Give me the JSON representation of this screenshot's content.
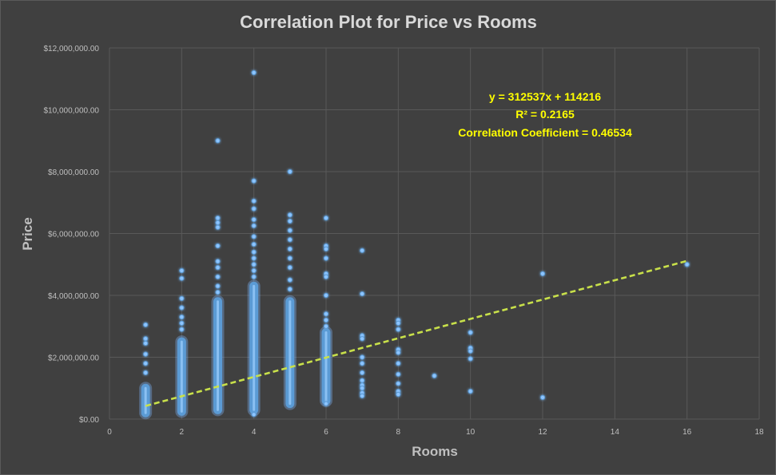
{
  "chart_data": {
    "type": "scatter",
    "title": "Correlation Plot for Price vs Rooms",
    "xlabel": "Rooms",
    "ylabel": "Price",
    "xlim": [
      0,
      18
    ],
    "ylim": [
      0,
      12000000
    ],
    "x_ticks": [
      0,
      2,
      4,
      6,
      8,
      10,
      12,
      14,
      16,
      18
    ],
    "y_ticks": [
      0,
      2000000,
      4000000,
      6000000,
      8000000,
      10000000,
      12000000
    ],
    "y_tick_labels": [
      "$0.00",
      "$2,000,000.00",
      "$4,000,000.00",
      "$6,000,000.00",
      "$8,000,000.00",
      "$10,000,000.00",
      "$12,000,000.00"
    ],
    "grid": true,
    "legend": "none",
    "series": [
      {
        "color": "#5b9bd5",
        "ranges": [
          {
            "x": 1,
            "y_min": 200000,
            "y_max": 1000000
          },
          {
            "x": 2,
            "y_min": 250000,
            "y_max": 2500000
          },
          {
            "x": 3,
            "y_min": 300000,
            "y_max": 3800000
          },
          {
            "x": 4,
            "y_min": 300000,
            "y_max": 4300000
          },
          {
            "x": 5,
            "y_min": 500000,
            "y_max": 3800000
          },
          {
            "x": 6,
            "y_min": 600000,
            "y_max": 2800000
          }
        ],
        "points": [
          {
            "x": 1,
            "y": 3050000
          },
          {
            "x": 1,
            "y": 2600000
          },
          {
            "x": 1,
            "y": 2450000
          },
          {
            "x": 1,
            "y": 2100000
          },
          {
            "x": 1,
            "y": 1800000
          },
          {
            "x": 1,
            "y": 1500000
          },
          {
            "x": 2,
            "y": 4800000
          },
          {
            "x": 2,
            "y": 4550000
          },
          {
            "x": 2,
            "y": 3900000
          },
          {
            "x": 2,
            "y": 3600000
          },
          {
            "x": 2,
            "y": 3300000
          },
          {
            "x": 2,
            "y": 3100000
          },
          {
            "x": 2,
            "y": 2900000
          },
          {
            "x": 3,
            "y": 9000000
          },
          {
            "x": 3,
            "y": 6500000
          },
          {
            "x": 3,
            "y": 6350000
          },
          {
            "x": 3,
            "y": 6200000
          },
          {
            "x": 3,
            "y": 5600000
          },
          {
            "x": 3,
            "y": 5100000
          },
          {
            "x": 3,
            "y": 4900000
          },
          {
            "x": 3,
            "y": 4600000
          },
          {
            "x": 3,
            "y": 4300000
          },
          {
            "x": 3,
            "y": 4100000
          },
          {
            "x": 4,
            "y": 11200000
          },
          {
            "x": 4,
            "y": 7700000
          },
          {
            "x": 4,
            "y": 7050000
          },
          {
            "x": 4,
            "y": 6800000
          },
          {
            "x": 4,
            "y": 6450000
          },
          {
            "x": 4,
            "y": 6250000
          },
          {
            "x": 4,
            "y": 5900000
          },
          {
            "x": 4,
            "y": 5650000
          },
          {
            "x": 4,
            "y": 5400000
          },
          {
            "x": 4,
            "y": 5200000
          },
          {
            "x": 4,
            "y": 5000000
          },
          {
            "x": 4,
            "y": 4800000
          },
          {
            "x": 4,
            "y": 4600000
          },
          {
            "x": 4,
            "y": 150000
          },
          {
            "x": 5,
            "y": 8000000
          },
          {
            "x": 5,
            "y": 6600000
          },
          {
            "x": 5,
            "y": 6400000
          },
          {
            "x": 5,
            "y": 6100000
          },
          {
            "x": 5,
            "y": 5800000
          },
          {
            "x": 5,
            "y": 5500000
          },
          {
            "x": 5,
            "y": 5200000
          },
          {
            "x": 5,
            "y": 4900000
          },
          {
            "x": 5,
            "y": 4500000
          },
          {
            "x": 5,
            "y": 4200000
          },
          {
            "x": 6,
            "y": 6500000
          },
          {
            "x": 6,
            "y": 5600000
          },
          {
            "x": 6,
            "y": 5500000
          },
          {
            "x": 6,
            "y": 5200000
          },
          {
            "x": 6,
            "y": 4700000
          },
          {
            "x": 6,
            "y": 4600000
          },
          {
            "x": 6,
            "y": 4000000
          },
          {
            "x": 6,
            "y": 3400000
          },
          {
            "x": 6,
            "y": 3200000
          },
          {
            "x": 6,
            "y": 3000000
          },
          {
            "x": 6,
            "y": 500000
          },
          {
            "x": 7,
            "y": 5450000
          },
          {
            "x": 7,
            "y": 4050000
          },
          {
            "x": 7,
            "y": 2700000
          },
          {
            "x": 7,
            "y": 2600000
          },
          {
            "x": 7,
            "y": 2000000
          },
          {
            "x": 7,
            "y": 1800000
          },
          {
            "x": 7,
            "y": 1500000
          },
          {
            "x": 7,
            "y": 1250000
          },
          {
            "x": 7,
            "y": 1100000
          },
          {
            "x": 7,
            "y": 1000000
          },
          {
            "x": 7,
            "y": 850000
          },
          {
            "x": 7,
            "y": 750000
          },
          {
            "x": 8,
            "y": 3200000
          },
          {
            "x": 8,
            "y": 3100000
          },
          {
            "x": 8,
            "y": 2900000
          },
          {
            "x": 8,
            "y": 2250000
          },
          {
            "x": 8,
            "y": 2150000
          },
          {
            "x": 8,
            "y": 1800000
          },
          {
            "x": 8,
            "y": 1450000
          },
          {
            "x": 8,
            "y": 1150000
          },
          {
            "x": 8,
            "y": 900000
          },
          {
            "x": 8,
            "y": 800000
          },
          {
            "x": 9,
            "y": 1400000
          },
          {
            "x": 10,
            "y": 2800000
          },
          {
            "x": 10,
            "y": 2300000
          },
          {
            "x": 10,
            "y": 2200000
          },
          {
            "x": 10,
            "y": 1950000
          },
          {
            "x": 10,
            "y": 900000
          },
          {
            "x": 12,
            "y": 4700000
          },
          {
            "x": 12,
            "y": 700000
          },
          {
            "x": 16,
            "y": 5000000
          }
        ]
      }
    ],
    "trendline": {
      "type": "linear",
      "slope": 312537,
      "intercept": 114216,
      "x_from": 1,
      "x_to": 16,
      "color": "#c8e04a",
      "style": "dashed"
    },
    "annotations": {
      "equation": "y = 312537x + 114216",
      "r_squared": "R² = 0.2165",
      "correlation": "Correlation Coefficient = 0.46534",
      "color": "#ffff00"
    }
  }
}
